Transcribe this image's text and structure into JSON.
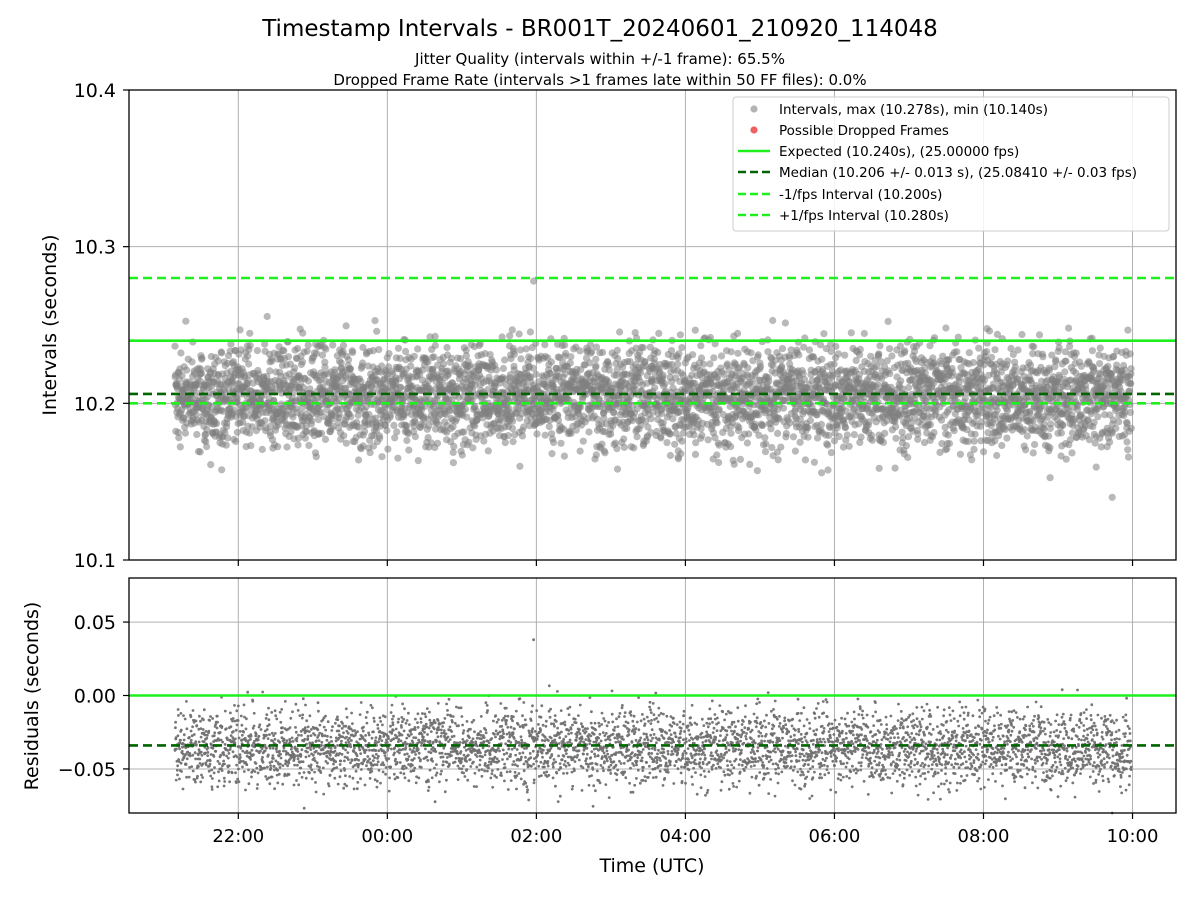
{
  "title": "Timestamp Intervals - BR001T_20240601_210920_114048",
  "subtitle_lines": [
    "Jitter Quality (intervals within +/-1 frame): 65.5%",
    "Dropped Frame Rate (intervals >1 frames late within 50 FF files): 0.0%"
  ],
  "chart_data": [
    {
      "type": "scatter",
      "ylabel": "Intervals (seconds)",
      "xlim": [
        "2024-06-01 20:32",
        "2024-06-02 10:35"
      ],
      "ylim": [
        10.1,
        10.4
      ],
      "yticks": [
        "10.1",
        "10.2",
        "10.3",
        "10.4"
      ],
      "xticks": [
        "22:00",
        "00:00",
        "02:00",
        "04:00",
        "06:00",
        "08:00",
        "10:00"
      ],
      "grid": true,
      "legend_placement": "top-right",
      "legend": [
        "Intervals, max (10.278s), min (10.140s)",
        "Possible Dropped Frames",
        "Expected (10.240s), (25.00000 fps)",
        "Median (10.206 +/- 0.013 s), (25.08410 +/- 0.03 fps)",
        "-1/fps Interval (10.200s)",
        "+1/fps Interval (10.280s)"
      ],
      "series": [
        {
          "name": "Intervals",
          "kind": "points",
          "color": "#808080",
          "x_start": "2024-06-01 21:09",
          "x_end": "2024-06-02 09:59",
          "typical_range": [
            10.18,
            10.23
          ],
          "max": 10.278,
          "min": 10.14,
          "count_shown": 4500
        },
        {
          "name": "Possible Dropped Frames",
          "kind": "points",
          "color": "#f06060",
          "values": []
        },
        {
          "name": "Expected",
          "kind": "hline",
          "y": 10.24,
          "color": "#1ef01e",
          "style": "solid"
        },
        {
          "name": "Median",
          "kind": "hline",
          "y": 10.206,
          "color": "#006400",
          "style": "dashed"
        },
        {
          "name": "-1/fps Interval",
          "kind": "hline",
          "y": 10.2,
          "color": "#1ef01e",
          "style": "dashed"
        },
        {
          "name": "+1/fps Interval",
          "kind": "hline",
          "y": 10.28,
          "color": "#1ef01e",
          "style": "dashed"
        }
      ]
    },
    {
      "type": "scatter",
      "xlabel": "Time (UTC)",
      "ylabel": "Residuals (seconds)",
      "xlim": [
        "2024-06-01 20:32",
        "2024-06-02 10:35"
      ],
      "ylim": [
        -0.08,
        0.08
      ],
      "yticks": [
        "−0.05",
        "0.00",
        "0.05"
      ],
      "xticks": [
        "22:00",
        "00:00",
        "02:00",
        "04:00",
        "06:00",
        "08:00",
        "10:00"
      ],
      "grid": true,
      "series": [
        {
          "name": "Residuals",
          "kind": "points",
          "color": "#707070",
          "x_start": "2024-06-01 21:09",
          "x_end": "2024-06-02 09:59",
          "typical_range": [
            -0.055,
            -0.015
          ],
          "max": 0.038,
          "min": -0.08,
          "count_shown": 4500
        },
        {
          "name": "Zero",
          "kind": "hline",
          "y": 0.0,
          "color": "#1ef01e",
          "style": "solid"
        },
        {
          "name": "Median residual",
          "kind": "hline",
          "y": -0.034,
          "color": "#006400",
          "style": "dashed"
        }
      ]
    }
  ]
}
